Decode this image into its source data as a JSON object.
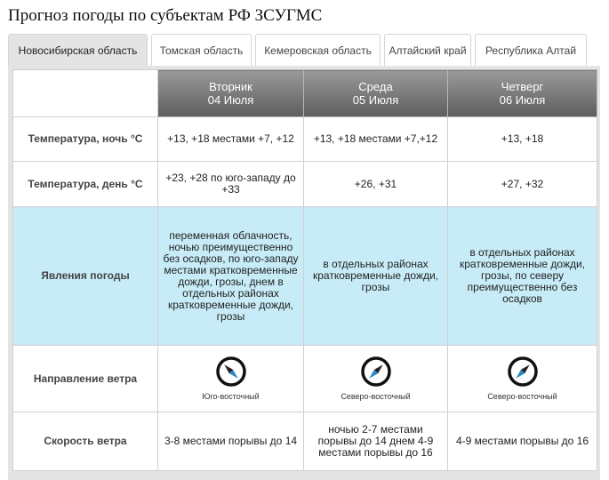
{
  "page": {
    "title": "Прогноз погоды по субъектам РФ ЗСУГМС"
  },
  "tabs": [
    {
      "label": "Новосибирская область",
      "active": true
    },
    {
      "label": "Томская область",
      "active": false
    },
    {
      "label": "Кемеровская область",
      "active": false
    },
    {
      "label": "Алтайский край",
      "active": false
    },
    {
      "label": "Республика Алтай",
      "active": false
    }
  ],
  "days": [
    {
      "weekday": "Вторник",
      "date": "04 Июля"
    },
    {
      "weekday": "Среда",
      "date": "05 Июля"
    },
    {
      "weekday": "Четверг",
      "date": "06 Июля"
    }
  ],
  "rows": {
    "night_temp": {
      "label": "Температура, ночь °C",
      "values": [
        "+13, +18 местами +7, +12",
        "+13, +18 местами +7,+12",
        "+13, +18"
      ]
    },
    "day_temp": {
      "label": "Температура, день °C",
      "values": [
        "+23, +28 по юго-западу до +33",
        "+26, +31",
        "+27, +32"
      ]
    },
    "phenomena": {
      "label": "Явления погоды",
      "values": [
        "переменная облачность, ночью преимущественно без осадков, по юго-западу местами кратковременные дожди, грозы, днем в отдельных районах кратковременные дожди, грозы",
        "в отдельных районах кратковременные дожди, грозы",
        "в отдельных районах кратковременные дожди, грозы, по северу преимущественно без осадков"
      ]
    },
    "wind_dir": {
      "label": "Направление ветра",
      "values": [
        "Юго-восточный",
        "Северо-восточный",
        "Северо-восточный"
      ],
      "icons": [
        "compass-icon",
        "compass-icon",
        "compass-icon"
      ]
    },
    "wind_speed": {
      "label": "Скорость ветра",
      "values": [
        "3-8 местами порывы до 14",
        "ночью 2-7 местами порывы до 14 днем 4-9 местами порывы до 16",
        "4-9 местами порывы до 16"
      ]
    }
  },
  "colors": {
    "header_gradient": [
      "#9a9a9a",
      "#5d5d5d"
    ],
    "phenomena_bg": "#c7ecf7",
    "panel_bg": "#e4e4e4"
  }
}
